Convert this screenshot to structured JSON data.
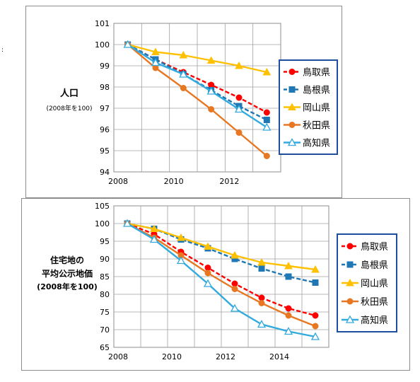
{
  "chart_data": [
    {
      "type": "line",
      "ylabel": "人口",
      "ylabel_note": "(2008年を100)",
      "x": [
        2008,
        2009,
        2010,
        2011,
        2012,
        2013
      ],
      "xticks": [
        "2008",
        "2010",
        "2012"
      ],
      "ylim": [
        94,
        101
      ],
      "yticks": [
        "94",
        "95",
        "96",
        "97",
        "98",
        "99",
        "100",
        "101"
      ],
      "grid": true,
      "legend_position": "right",
      "series": [
        {
          "name": "鳥取県",
          "color": "#ff0000",
          "line_style": "dashed",
          "marker": "circle",
          "values": [
            100,
            99.3,
            98.7,
            98.1,
            97.5,
            96.8
          ]
        },
        {
          "name": "島根県",
          "color": "#1f77b4",
          "line_style": "dashed",
          "marker": "square",
          "values": [
            100,
            99.3,
            98.6,
            97.85,
            97.1,
            96.45
          ]
        },
        {
          "name": "岡山県",
          "color": "#ffc000",
          "line_style": "solid",
          "marker": "triangle",
          "values": [
            100,
            99.65,
            99.5,
            99.25,
            99.0,
            98.7
          ]
        },
        {
          "name": "秋田県",
          "color": "#e87722",
          "line_style": "solid",
          "marker": "circle",
          "values": [
            100,
            98.9,
            97.95,
            96.95,
            95.85,
            94.75
          ]
        },
        {
          "name": "高知県",
          "color": "#33aadd",
          "line_style": "solid",
          "marker": "open-triangle",
          "values": [
            100,
            99.15,
            98.6,
            97.8,
            96.95,
            96.1
          ]
        }
      ]
    },
    {
      "type": "line",
      "ylabel": "住宅地の平均公示地価",
      "ylabel_lines": [
        "住宅地の",
        "平均公示地価"
      ],
      "ylabel_note": "(2008年を100)",
      "x": [
        2008,
        2009,
        2010,
        2011,
        2012,
        2013,
        2014,
        2015
      ],
      "xticks": [
        "2008",
        "2010",
        "2012",
        "2014"
      ],
      "ylim": [
        65,
        105
      ],
      "yticks": [
        "65",
        "70",
        "75",
        "80",
        "85",
        "90",
        "95",
        "100",
        "105"
      ],
      "grid": true,
      "legend_position": "right",
      "series": [
        {
          "name": "鳥取県",
          "color": "#ff0000",
          "line_style": "dashed",
          "marker": "circle",
          "values": [
            100,
            97,
            92,
            87.5,
            83,
            79,
            76,
            74
          ]
        },
        {
          "name": "島根県",
          "color": "#1f77b4",
          "line_style": "dashed",
          "marker": "square",
          "values": [
            100,
            98.5,
            95.5,
            93,
            90,
            87.3,
            85,
            83.3
          ]
        },
        {
          "name": "岡山県",
          "color": "#ffc000",
          "line_style": "solid",
          "marker": "triangle",
          "values": [
            100,
            98.5,
            96,
            93.5,
            91,
            89,
            88,
            87
          ]
        },
        {
          "name": "秋田県",
          "color": "#e87722",
          "line_style": "solid",
          "marker": "circle",
          "values": [
            100,
            96,
            91,
            86,
            81.5,
            77.5,
            74,
            71
          ]
        },
        {
          "name": "高知県",
          "color": "#33aadd",
          "line_style": "solid",
          "marker": "open-triangle",
          "values": [
            100,
            95.5,
            89.5,
            83,
            76,
            71.5,
            69.5,
            68
          ]
        }
      ]
    }
  ]
}
